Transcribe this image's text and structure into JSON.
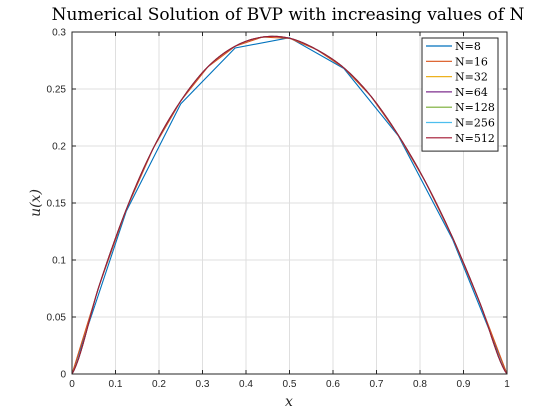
{
  "chart_data": {
    "type": "line",
    "title": "Numerical Solution of BVP with increasing values of N",
    "xlabel": "x",
    "ylabel": "u(x)",
    "xlim": [
      0,
      1
    ],
    "ylim": [
      0,
      0.3
    ],
    "xticks": [
      "0",
      "0.1",
      "0.2",
      "0.3",
      "0.4",
      "0.5",
      "0.6",
      "0.7",
      "0.8",
      "0.9",
      "1"
    ],
    "yticks": [
      "0",
      "0.05",
      "0.1",
      "0.15",
      "0.2",
      "0.25",
      "0.3"
    ],
    "grid": true,
    "legend_position": "top-right",
    "series": [
      {
        "name": "N=8",
        "color": "#0072BD",
        "x": [
          0,
          0.125,
          0.25,
          0.375,
          0.5,
          0.625,
          0.75,
          0.875,
          1
        ],
        "y": [
          0,
          0.143,
          0.237,
          0.286,
          0.295,
          0.268,
          0.209,
          0.118,
          0
        ]
      },
      {
        "name": "N=16",
        "color": "#D95319",
        "x": [
          0,
          0.0625,
          0.125,
          0.1875,
          0.25,
          0.3125,
          0.375,
          0.4375,
          0.5,
          0.5625,
          0.625,
          0.6875,
          0.75,
          0.8125,
          0.875,
          0.9375,
          1
        ],
        "y": [
          0,
          0.0775,
          0.1445,
          0.1985,
          0.2395,
          0.2695,
          0.2875,
          0.2955,
          0.2945,
          0.2845,
          0.2685,
          0.2435,
          0.2095,
          0.1685,
          0.1195,
          0.0625,
          0
        ]
      },
      {
        "name": "N=32",
        "color": "#EDB120",
        "curve": "smooth"
      },
      {
        "name": "N=64",
        "color": "#7E2F8E",
        "curve": "smooth"
      },
      {
        "name": "N=128",
        "color": "#77AC30",
        "curve": "smooth"
      },
      {
        "name": "N=256",
        "color": "#4DBEEE",
        "curve": "smooth"
      },
      {
        "name": "N=512",
        "color": "#A2142F",
        "curve": "smooth"
      }
    ]
  }
}
